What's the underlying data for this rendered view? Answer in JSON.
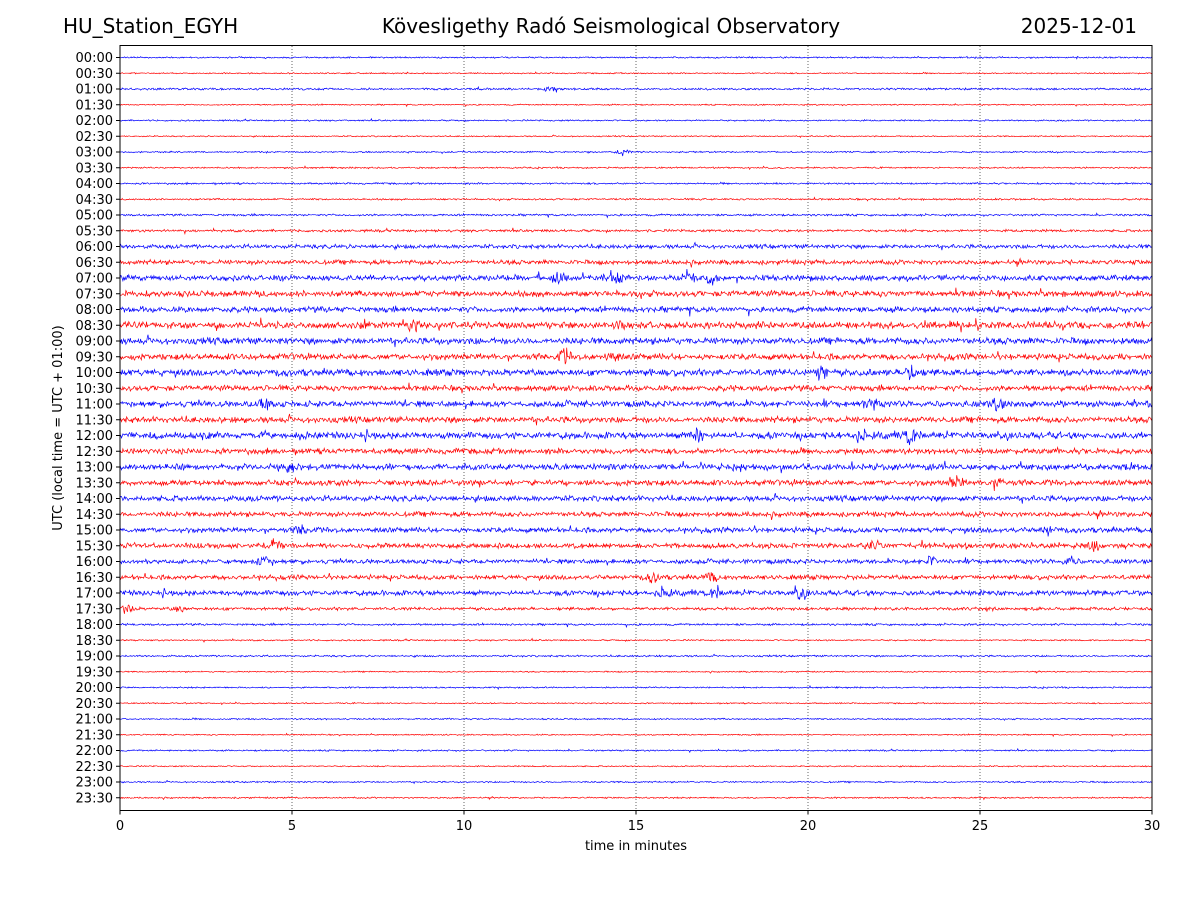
{
  "header": {
    "station": "HU_Station_EGYH",
    "observatory": "Kövesligethy Radó Seismological Observatory",
    "date": "2025-12-01"
  },
  "chart_data": {
    "type": "line",
    "title": "Kövesligethy Radó Seismological Observatory",
    "xlabel": "time in minutes",
    "ylabel": "UTC (local time = UTC + 01:00)",
    "xlim": [
      0,
      30
    ],
    "xticks": [
      0,
      5,
      10,
      15,
      20,
      25,
      30
    ],
    "grid": "vertical dotted lines at 5-minute ticks",
    "colors": {
      "even_rows": "#0000ff",
      "odd_rows": "#ff0000"
    },
    "row_labels": [
      "00:00",
      "00:30",
      "01:00",
      "01:30",
      "02:00",
      "02:30",
      "03:00",
      "03:30",
      "04:00",
      "04:30",
      "05:00",
      "05:30",
      "06:00",
      "06:30",
      "07:00",
      "07:30",
      "08:00",
      "08:30",
      "09:00",
      "09:30",
      "10:00",
      "10:30",
      "11:00",
      "11:30",
      "12:00",
      "12:30",
      "13:00",
      "13:30",
      "14:00",
      "14:30",
      "15:00",
      "15:30",
      "16:00",
      "16:30",
      "17:00",
      "17:30",
      "18:00",
      "18:30",
      "19:00",
      "19:30",
      "20:00",
      "20:30",
      "21:00",
      "21:30",
      "22:00",
      "22:30",
      "23:00",
      "23:30"
    ],
    "noise_levels": [
      0.6,
      0.5,
      0.8,
      0.5,
      0.6,
      0.5,
      0.6,
      0.6,
      0.7,
      0.7,
      0.8,
      1.0,
      1.6,
      1.8,
      2.2,
      2.4,
      2.2,
      2.8,
      2.6,
      2.4,
      2.6,
      2.2,
      2.4,
      2.4,
      2.6,
      2.2,
      2.4,
      2.2,
      2.2,
      2.0,
      2.0,
      2.0,
      1.8,
      1.8,
      2.0,
      1.2,
      0.8,
      0.6,
      0.7,
      0.5,
      0.6,
      0.5,
      0.6,
      0.5,
      0.6,
      0.5,
      0.6,
      0.6
    ],
    "events": [
      {
        "row": 2,
        "minute": 12.5,
        "amplitude": 2.0
      },
      {
        "row": 6,
        "minute": 14.6,
        "amplitude": 3.0
      },
      {
        "row": 14,
        "minute": 12.7,
        "amplitude": 5.0
      },
      {
        "row": 14,
        "minute": 14.5,
        "amplitude": 4.0
      },
      {
        "row": 14,
        "minute": 16.5,
        "amplitude": 7.5
      },
      {
        "row": 14,
        "minute": 17.2,
        "amplitude": 5.0
      },
      {
        "row": 17,
        "minute": 8.5,
        "amplitude": 4.5
      },
      {
        "row": 17,
        "minute": 14.5,
        "amplitude": 4.0
      },
      {
        "row": 19,
        "minute": 12.9,
        "amplitude": 6.0
      },
      {
        "row": 19,
        "minute": 14.3,
        "amplitude": 4.5
      },
      {
        "row": 20,
        "minute": 20.4,
        "amplitude": 6.0
      },
      {
        "row": 20,
        "minute": 23.0,
        "amplitude": 6.5
      },
      {
        "row": 22,
        "minute": 4.2,
        "amplitude": 5.0
      },
      {
        "row": 22,
        "minute": 21.8,
        "amplitude": 6.5
      },
      {
        "row": 22,
        "minute": 25.5,
        "amplitude": 6.0
      },
      {
        "row": 24,
        "minute": 16.8,
        "amplitude": 6.5
      },
      {
        "row": 24,
        "minute": 21.5,
        "amplitude": 6.0
      },
      {
        "row": 24,
        "minute": 23.0,
        "amplitude": 6.5
      },
      {
        "row": 26,
        "minute": 4.9,
        "amplitude": 5.0
      },
      {
        "row": 27,
        "minute": 24.3,
        "amplitude": 6.0
      },
      {
        "row": 27,
        "minute": 25.5,
        "amplitude": 4.0
      },
      {
        "row": 30,
        "minute": 5.3,
        "amplitude": 4.0
      },
      {
        "row": 30,
        "minute": 27.0,
        "amplitude": 4.0
      },
      {
        "row": 31,
        "minute": 4.5,
        "amplitude": 4.5
      },
      {
        "row": 31,
        "minute": 21.9,
        "amplitude": 4.0
      },
      {
        "row": 31,
        "minute": 28.3,
        "amplitude": 5.0
      },
      {
        "row": 32,
        "minute": 4.2,
        "amplitude": 4.0
      },
      {
        "row": 32,
        "minute": 23.6,
        "amplitude": 4.0
      },
      {
        "row": 32,
        "minute": 27.6,
        "amplitude": 4.0
      },
      {
        "row": 33,
        "minute": 15.5,
        "amplitude": 4.0
      },
      {
        "row": 33,
        "minute": 17.2,
        "amplitude": 5.0
      },
      {
        "row": 34,
        "minute": 15.8,
        "amplitude": 5.5
      },
      {
        "row": 34,
        "minute": 17.3,
        "amplitude": 5.0
      },
      {
        "row": 34,
        "minute": 19.8,
        "amplitude": 4.5
      },
      {
        "row": 35,
        "minute": 0.2,
        "amplitude": 4.0
      },
      {
        "row": 35,
        "minute": 1.7,
        "amplitude": 2.5
      }
    ]
  }
}
